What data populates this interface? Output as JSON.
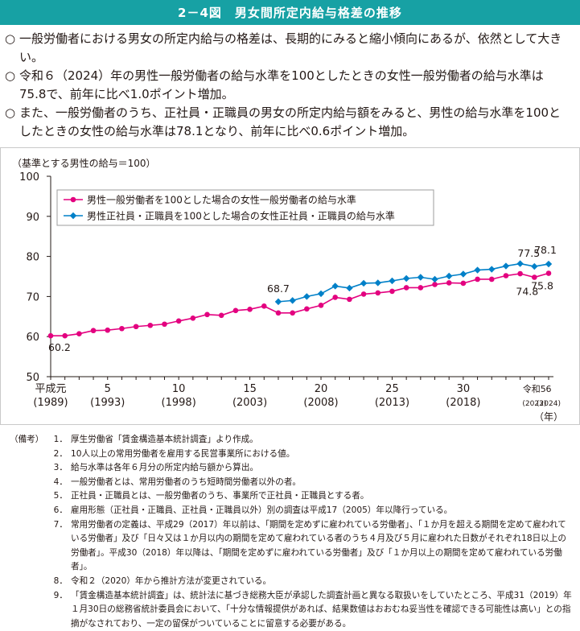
{
  "header": {
    "title": "2－4図　男女間所定内給与格差の推移"
  },
  "summary": [
    {
      "bullet": "○",
      "text": "一般労働者における男女の所定内給与の格差は、長期的にみると縮小傾向にあるが、依然として大きい。"
    },
    {
      "bullet": "○",
      "text": "令和６（2024）年の男性一般労働者の給与水準を100としたときの女性一般労働者の給与水準は75.8で、前年に比べ1.0ポイント増加。"
    },
    {
      "bullet": "○",
      "text": "また、一般労働者のうち、正社員・正職員の男女の所定内給与額をみると、男性の給与水準を100としたときの女性の給与水準は78.1となり、前年に比べ0.6ポイント増加。"
    }
  ],
  "chart_data": {
    "type": "line",
    "ylabel": "（基準とする男性の給与＝100）",
    "ylim": [
      50,
      100
    ],
    "yticks": [
      "50",
      "60",
      "70",
      "80",
      "90",
      "100"
    ],
    "xunit": "（年）",
    "xtick_labels": [
      {
        "year": 1989,
        "top": "平成元",
        "bottom": "(1989)"
      },
      {
        "year": 1993,
        "top": "5",
        "bottom": "(1993)"
      },
      {
        "year": 1998,
        "top": "10",
        "bottom": "(1998)"
      },
      {
        "year": 2003,
        "top": "15",
        "bottom": "(2003)"
      },
      {
        "year": 2008,
        "top": "20",
        "bottom": "(2008)"
      },
      {
        "year": 2013,
        "top": "25",
        "bottom": "(2013)"
      },
      {
        "year": 2018,
        "top": "30",
        "bottom": "(2018)"
      },
      {
        "year": 2023,
        "top": "令和5",
        "bottom": "(2023)"
      },
      {
        "year": 2024,
        "top": "6",
        "bottom": "(2024)"
      }
    ],
    "legend_placement": "top-left",
    "series": [
      {
        "name": "男性一般労働者を100とした場合の女性一般労働者の給与水準",
        "color": "#e3007f",
        "marker": "circle",
        "x": [
          1989,
          1990,
          1991,
          1992,
          1993,
          1994,
          1995,
          1996,
          1997,
          1998,
          1999,
          2000,
          2001,
          2002,
          2003,
          2004,
          2005,
          2006,
          2007,
          2008,
          2009,
          2010,
          2011,
          2012,
          2013,
          2014,
          2015,
          2016,
          2017,
          2018,
          2019,
          2020,
          2021,
          2022,
          2023,
          2024
        ],
        "values": [
          60.2,
          60.2,
          60.7,
          61.5,
          61.6,
          62.0,
          62.5,
          62.8,
          63.1,
          63.9,
          64.6,
          65.5,
          65.3,
          66.5,
          66.8,
          67.6,
          65.9,
          65.9,
          66.9,
          67.8,
          69.8,
          69.3,
          70.6,
          70.9,
          71.3,
          72.2,
          72.2,
          73.0,
          73.4,
          73.3,
          74.3,
          74.3,
          75.2,
          75.7,
          74.8,
          75.8
        ]
      },
      {
        "name": "男性正社員・正職員を100とした場合の女性正社員・正職員の給与水準",
        "color": "#0080c8",
        "marker": "diamond",
        "x": [
          2005,
          2006,
          2007,
          2008,
          2009,
          2010,
          2011,
          2012,
          2013,
          2014,
          2015,
          2016,
          2017,
          2018,
          2019,
          2020,
          2021,
          2022,
          2023,
          2024
        ],
        "values": [
          68.7,
          69.0,
          70.0,
          70.7,
          72.6,
          72.1,
          73.3,
          73.4,
          73.9,
          74.5,
          74.8,
          74.3,
          75.1,
          75.6,
          76.6,
          76.8,
          77.6,
          78.2,
          77.5,
          78.1
        ]
      }
    ],
    "data_labels": [
      {
        "series": 0,
        "year": 1989,
        "text": "60.2"
      },
      {
        "series": 1,
        "year": 2005,
        "text": "68.7"
      },
      {
        "series": 1,
        "year": 2023,
        "text": "77.5"
      },
      {
        "series": 1,
        "year": 2024,
        "text": "78.1"
      },
      {
        "series": 0,
        "year": 2023,
        "text": "74.8"
      },
      {
        "series": 0,
        "year": 2024,
        "text": "75.8"
      }
    ]
  },
  "notes": {
    "heading": "（備考）",
    "items": [
      {
        "num": "1．",
        "text": "厚生労働省「賃金構造基本統計調査」より作成。"
      },
      {
        "num": "2．",
        "text": "10人以上の常用労働者を雇用する民営事業所における値。"
      },
      {
        "num": "3．",
        "text": "給与水準は各年６月分の所定内給与額から算出。"
      },
      {
        "num": "4．",
        "text": "一般労働者とは、常用労働者のうち短時間労働者以外の者。"
      },
      {
        "num": "5．",
        "text": "正社員・正職員とは、一般労働者のうち、事業所で正社員・正職員とする者。"
      },
      {
        "num": "6．",
        "text": "雇用形態（正社員・正職員、正社員・正職員以外）別の調査は平成17（2005）年以降行っている。"
      },
      {
        "num": "7．",
        "text": "常用労働者の定義は、平成29（2017）年以前は、「期間を定めずに雇われている労働者」、「１か月を超える期間を定めて雇われている労働者」及び「日々又は１か月以内の期間を定めて雇われている者のうち４月及び５月に雇われた日数がそれぞれ18日以上の労働者」。平成30（2018）年以降は、「期間を定めずに雇われている労働者」及び「１か月以上の期間を定めて雇われている労働者」。"
      },
      {
        "num": "8．",
        "text": "令和２（2020）年から推計方法が変更されている。"
      },
      {
        "num": "9．",
        "text": "「賃金構造基本統計調査」は、統計法に基づき総務大臣が承認した調査計画と異なる取扱いをしていたところ、平成31（2019）年１月30日の総務省統計委員会において、「十分な情報提供があれば、結果数値はおおむね妥当性を確認できる可能性は高い」との指摘がなされており、一定の留保がついていることに留意する必要がある。"
      }
    ]
  }
}
